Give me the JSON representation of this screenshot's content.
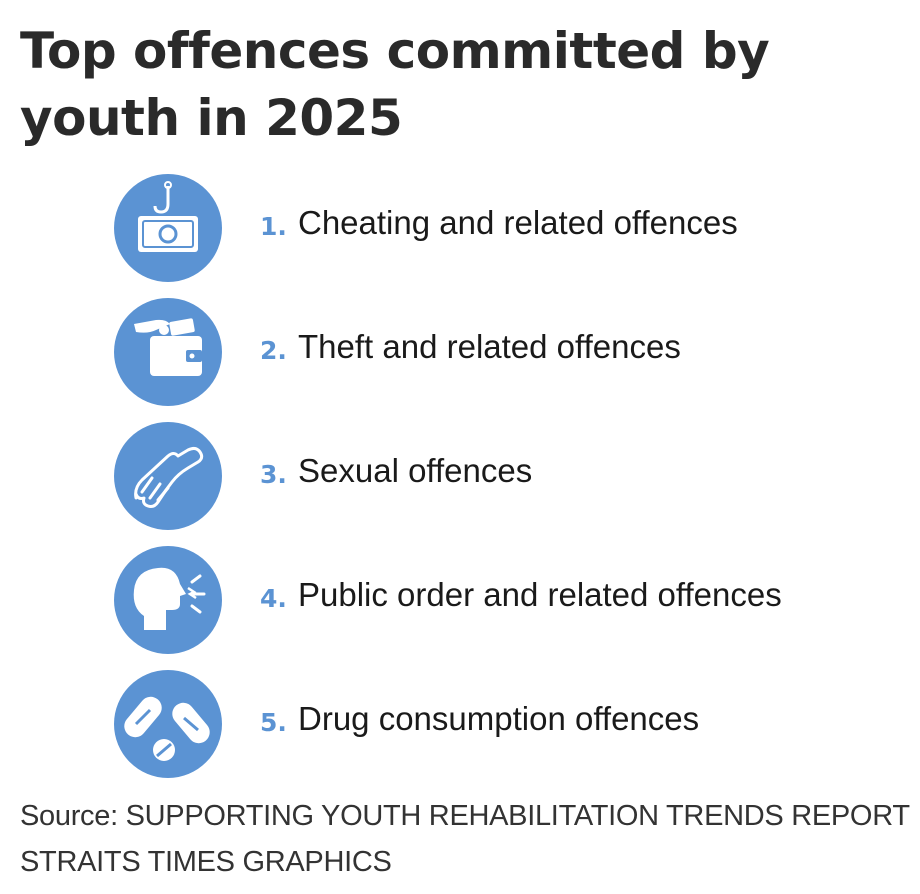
{
  "title_lines": [
    "Top offences committed by",
    "youth in 2025"
  ],
  "accent_color": "#5b93d3",
  "items": [
    {
      "number": "1.",
      "label": "Cheating and related offences",
      "icon": "money-hook-icon"
    },
    {
      "number": "2.",
      "label": "Theft and related offences",
      "icon": "hand-wallet-icon"
    },
    {
      "number": "3.",
      "label": "Sexual offences",
      "icon": "hand-icon"
    },
    {
      "number": "4.",
      "label": "Public order and related offences",
      "icon": "shouting-head-icon"
    },
    {
      "number": "5.",
      "label": "Drug consumption offences",
      "icon": "pills-icon"
    }
  ],
  "source": "Source: SUPPORTING YOUTH REHABILITATION TRENDS REPORT",
  "credit": "STRAITS TIMES GRAPHICS"
}
